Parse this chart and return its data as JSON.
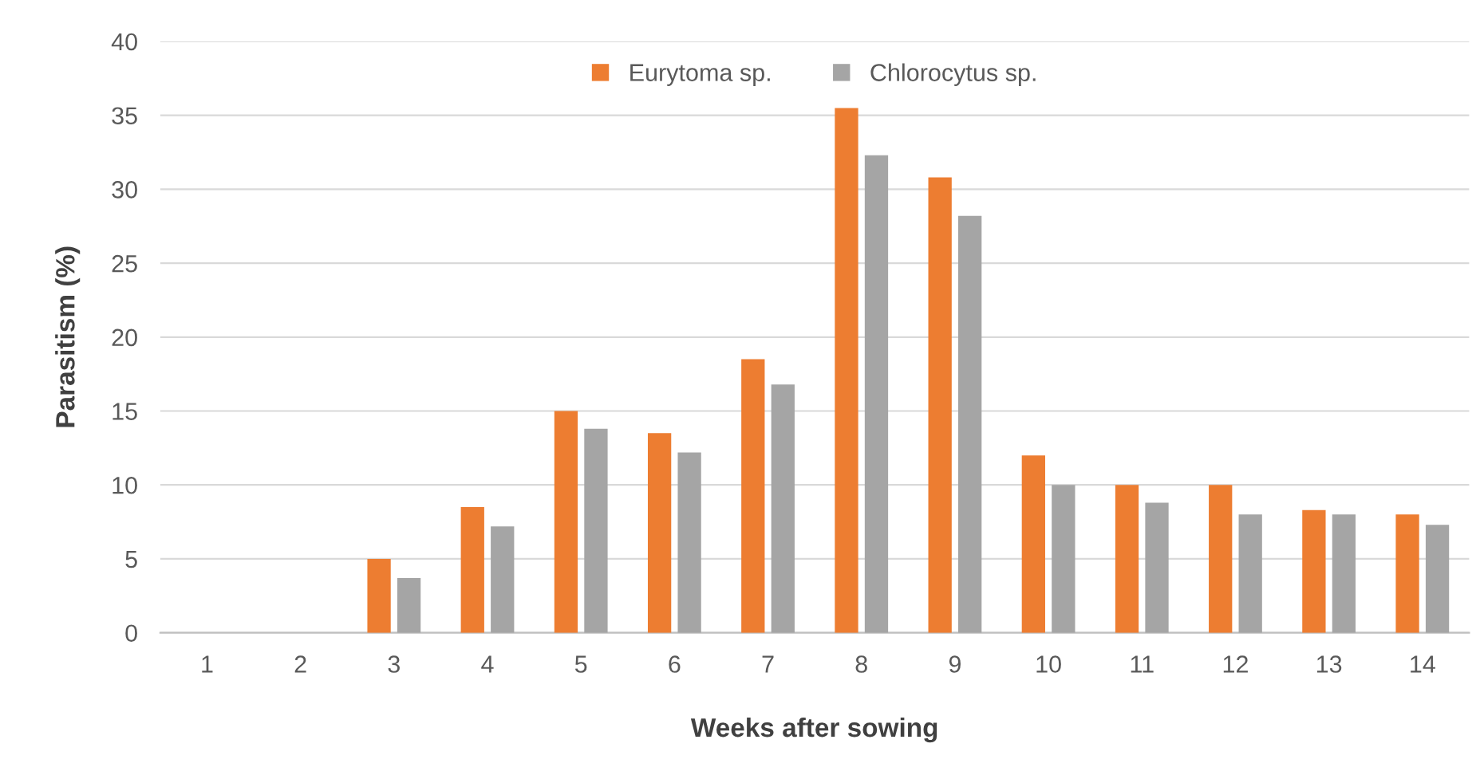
{
  "chart_data": {
    "type": "bar",
    "xlabel": "Weeks after sowing",
    "ylabel": "Parasitism (%)",
    "categories": [
      "1",
      "2",
      "3",
      "4",
      "5",
      "6",
      "7",
      "8",
      "9",
      "10",
      "11",
      "12",
      "13",
      "14"
    ],
    "series": [
      {
        "name": "Eurytoma sp.",
        "color": "#ed7d31",
        "values": [
          0,
          0,
          5,
          8.5,
          15,
          13.5,
          18.5,
          35.5,
          30.8,
          12,
          10,
          10,
          8.3,
          8
        ]
      },
      {
        "name": "Chlorocytus sp.",
        "color": "#a5a5a5",
        "values": [
          0,
          0,
          3.7,
          7.2,
          13.8,
          12.2,
          16.8,
          32.3,
          28.2,
          10,
          8.8,
          8,
          8,
          7.3
        ]
      }
    ],
    "ylim": [
      0,
      40
    ],
    "yticks": [
      0,
      5,
      10,
      15,
      20,
      25,
      30,
      35,
      40
    ],
    "grid": "y",
    "legend": "top"
  }
}
